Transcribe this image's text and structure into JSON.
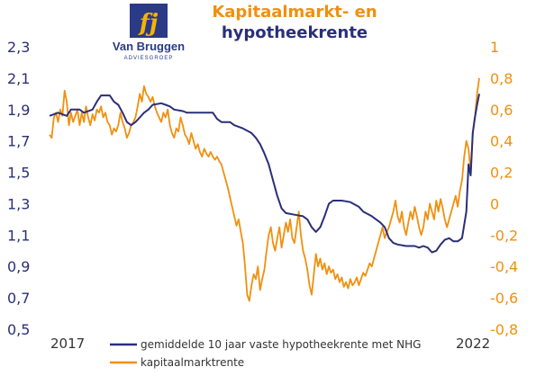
{
  "logo": {
    "company": "Van Bruggen",
    "tagline": "ADVIESGROEP",
    "mark": "fj"
  },
  "colors": {
    "navy": "#2a2f78",
    "orange": "#f0900f",
    "logo_bg": "#2b3a86",
    "logo_mark": "#f4b400"
  },
  "chart_data": {
    "type": "line",
    "title": "Kapitaalmarkt- en",
    "subtitle": "hypotheekrente",
    "x_start_label": "2017",
    "x_end_label": "2022",
    "grid": false,
    "legend_position": "bottom",
    "y_left": {
      "ticks": [
        "2,3",
        "2,1",
        "1,9",
        "1,7",
        "1,5",
        "1,3",
        "1,1",
        "0,9",
        "0,7",
        "0,5"
      ],
      "range": [
        0.5,
        2.3
      ]
    },
    "y_right": {
      "ticks": [
        "1",
        "0,8",
        "0,6",
        "0,4",
        "0,2",
        "0",
        "-0,2",
        "-0,4",
        "-0,6",
        "-0,8"
      ],
      "range": [
        -0.8,
        1.0
      ]
    },
    "x_range": [
      0,
      100
    ],
    "series": [
      {
        "name": "gemiddelde 10 jaar vaste hypotheekrente met NHG",
        "axis": "left",
        "color": "#2a2f78",
        "points": [
          [
            0,
            1.86
          ],
          [
            2,
            1.88
          ],
          [
            4,
            1.86
          ],
          [
            5,
            1.9
          ],
          [
            7,
            1.9
          ],
          [
            8,
            1.88
          ],
          [
            10,
            1.9
          ],
          [
            11,
            1.95
          ],
          [
            12,
            1.99
          ],
          [
            14,
            1.99
          ],
          [
            15,
            1.95
          ],
          [
            16,
            1.93
          ],
          [
            17,
            1.88
          ],
          [
            18,
            1.82
          ],
          [
            19,
            1.8
          ],
          [
            20,
            1.82
          ],
          [
            21,
            1.85
          ],
          [
            22,
            1.88
          ],
          [
            23,
            1.9
          ],
          [
            24,
            1.93
          ],
          [
            26,
            1.94
          ],
          [
            27,
            1.93
          ],
          [
            28,
            1.92
          ],
          [
            29,
            1.9
          ],
          [
            31,
            1.89
          ],
          [
            32,
            1.88
          ],
          [
            34,
            1.88
          ],
          [
            36,
            1.88
          ],
          [
            38,
            1.88
          ],
          [
            39,
            1.84
          ],
          [
            40,
            1.82
          ],
          [
            42,
            1.82
          ],
          [
            43,
            1.8
          ],
          [
            45,
            1.78
          ],
          [
            47,
            1.75
          ],
          [
            48,
            1.72
          ],
          [
            49,
            1.68
          ],
          [
            50,
            1.62
          ],
          [
            51,
            1.55
          ],
          [
            52,
            1.45
          ],
          [
            53,
            1.35
          ],
          [
            54,
            1.27
          ],
          [
            55,
            1.24
          ],
          [
            57,
            1.23
          ],
          [
            59,
            1.22
          ],
          [
            60,
            1.2
          ],
          [
            61,
            1.15
          ],
          [
            62,
            1.12
          ],
          [
            63,
            1.15
          ],
          [
            64,
            1.22
          ],
          [
            65,
            1.3
          ],
          [
            66,
            1.32
          ],
          [
            68,
            1.32
          ],
          [
            70,
            1.31
          ],
          [
            72,
            1.28
          ],
          [
            73,
            1.25
          ],
          [
            75,
            1.22
          ],
          [
            76,
            1.2
          ],
          [
            77,
            1.18
          ],
          [
            78,
            1.15
          ],
          [
            79,
            1.08
          ],
          [
            80,
            1.05
          ],
          [
            81,
            1.04
          ],
          [
            83,
            1.03
          ],
          [
            85,
            1.03
          ],
          [
            86,
            1.02
          ],
          [
            87,
            1.03
          ],
          [
            88,
            1.02
          ],
          [
            89,
            0.99
          ],
          [
            90,
            1.0
          ],
          [
            91,
            1.04
          ],
          [
            92,
            1.07
          ],
          [
            93,
            1.08
          ],
          [
            94,
            1.06
          ],
          [
            95,
            1.06
          ],
          [
            96,
            1.08
          ],
          [
            97,
            1.25
          ],
          [
            97.5,
            1.55
          ],
          [
            98,
            1.48
          ],
          [
            98.5,
            1.75
          ],
          [
            99,
            1.85
          ],
          [
            99.5,
            1.93
          ],
          [
            100,
            2.0
          ]
        ]
      },
      {
        "name": "kapitaalmarktrente",
        "axis": "right",
        "color": "#f0900f",
        "points": [
          [
            0,
            0.44
          ],
          [
            0.5,
            0.42
          ],
          [
            1,
            0.55
          ],
          [
            1.5,
            0.58
          ],
          [
            2,
            0.52
          ],
          [
            2.5,
            0.6
          ],
          [
            3,
            0.56
          ],
          [
            3.5,
            0.72
          ],
          [
            4,
            0.65
          ],
          [
            4.5,
            0.5
          ],
          [
            5,
            0.58
          ],
          [
            5.5,
            0.52
          ],
          [
            6,
            0.56
          ],
          [
            6.5,
            0.6
          ],
          [
            7,
            0.5
          ],
          [
            7.5,
            0.58
          ],
          [
            8,
            0.52
          ],
          [
            8.5,
            0.62
          ],
          [
            9,
            0.55
          ],
          [
            9.5,
            0.5
          ],
          [
            10,
            0.57
          ],
          [
            10.5,
            0.53
          ],
          [
            11,
            0.6
          ],
          [
            11.5,
            0.58
          ],
          [
            12,
            0.62
          ],
          [
            12.5,
            0.55
          ],
          [
            13,
            0.58
          ],
          [
            13.5,
            0.52
          ],
          [
            14,
            0.5
          ],
          [
            14.5,
            0.44
          ],
          [
            15,
            0.48
          ],
          [
            15.5,
            0.46
          ],
          [
            16,
            0.5
          ],
          [
            16.5,
            0.58
          ],
          [
            17,
            0.52
          ],
          [
            17.5,
            0.48
          ],
          [
            18,
            0.42
          ],
          [
            18.5,
            0.45
          ],
          [
            19,
            0.5
          ],
          [
            19.5,
            0.52
          ],
          [
            20,
            0.55
          ],
          [
            20.5,
            0.62
          ],
          [
            21,
            0.7
          ],
          [
            21.5,
            0.65
          ],
          [
            22,
            0.75
          ],
          [
            22.5,
            0.7
          ],
          [
            23,
            0.68
          ],
          [
            23.5,
            0.65
          ],
          [
            24,
            0.68
          ],
          [
            24.5,
            0.62
          ],
          [
            25,
            0.58
          ],
          [
            25.5,
            0.55
          ],
          [
            26,
            0.52
          ],
          [
            26.5,
            0.58
          ],
          [
            27,
            0.55
          ],
          [
            27.5,
            0.6
          ],
          [
            28,
            0.5
          ],
          [
            28.5,
            0.45
          ],
          [
            29,
            0.42
          ],
          [
            29.5,
            0.48
          ],
          [
            30,
            0.46
          ],
          [
            30.5,
            0.55
          ],
          [
            31,
            0.5
          ],
          [
            31.5,
            0.44
          ],
          [
            32,
            0.42
          ],
          [
            32.5,
            0.38
          ],
          [
            33,
            0.45
          ],
          [
            33.5,
            0.4
          ],
          [
            34,
            0.35
          ],
          [
            34.5,
            0.38
          ],
          [
            35,
            0.33
          ],
          [
            35.5,
            0.3
          ],
          [
            36,
            0.35
          ],
          [
            36.5,
            0.32
          ],
          [
            37,
            0.3
          ],
          [
            37.5,
            0.33
          ],
          [
            38,
            0.3
          ],
          [
            38.5,
            0.28
          ],
          [
            39,
            0.3
          ],
          [
            39.5,
            0.27
          ],
          [
            40,
            0.25
          ],
          [
            40.5,
            0.2
          ],
          [
            41,
            0.15
          ],
          [
            41.5,
            0.1
          ],
          [
            42,
            0.04
          ],
          [
            42.5,
            -0.02
          ],
          [
            43,
            -0.08
          ],
          [
            43.5,
            -0.14
          ],
          [
            44,
            -0.1
          ],
          [
            44.5,
            -0.18
          ],
          [
            45,
            -0.25
          ],
          [
            45.5,
            -0.4
          ],
          [
            46,
            -0.58
          ],
          [
            46.5,
            -0.62
          ],
          [
            47,
            -0.52
          ],
          [
            47.5,
            -0.45
          ],
          [
            48,
            -0.48
          ],
          [
            48.5,
            -0.4
          ],
          [
            49,
            -0.55
          ],
          [
            49.5,
            -0.48
          ],
          [
            50,
            -0.42
          ],
          [
            50.5,
            -0.3
          ],
          [
            51,
            -0.2
          ],
          [
            51.5,
            -0.15
          ],
          [
            52,
            -0.25
          ],
          [
            52.5,
            -0.3
          ],
          [
            53,
            -0.22
          ],
          [
            53.5,
            -0.15
          ],
          [
            54,
            -0.28
          ],
          [
            54.5,
            -0.2
          ],
          [
            55,
            -0.12
          ],
          [
            55.5,
            -0.18
          ],
          [
            56,
            -0.1
          ],
          [
            56.5,
            -0.22
          ],
          [
            57,
            -0.25
          ],
          [
            57.5,
            -0.15
          ],
          [
            58,
            -0.05
          ],
          [
            58.5,
            -0.2
          ],
          [
            59,
            -0.3
          ],
          [
            59.5,
            -0.35
          ],
          [
            60,
            -0.42
          ],
          [
            60.5,
            -0.52
          ],
          [
            61,
            -0.58
          ],
          [
            61.5,
            -0.45
          ],
          [
            62,
            -0.32
          ],
          [
            62.5,
            -0.4
          ],
          [
            63,
            -0.35
          ],
          [
            63.5,
            -0.42
          ],
          [
            64,
            -0.38
          ],
          [
            64.5,
            -0.45
          ],
          [
            65,
            -0.4
          ],
          [
            65.5,
            -0.44
          ],
          [
            66,
            -0.42
          ],
          [
            66.5,
            -0.48
          ],
          [
            67,
            -0.45
          ],
          [
            67.5,
            -0.5
          ],
          [
            68,
            -0.47
          ],
          [
            68.5,
            -0.53
          ],
          [
            69,
            -0.5
          ],
          [
            69.5,
            -0.54
          ],
          [
            70,
            -0.48
          ],
          [
            70.5,
            -0.52
          ],
          [
            71,
            -0.5
          ],
          [
            71.5,
            -0.47
          ],
          [
            72,
            -0.52
          ],
          [
            72.5,
            -0.48
          ],
          [
            73,
            -0.44
          ],
          [
            73.5,
            -0.46
          ],
          [
            74,
            -0.42
          ],
          [
            74.5,
            -0.38
          ],
          [
            75,
            -0.4
          ],
          [
            75.5,
            -0.35
          ],
          [
            76,
            -0.3
          ],
          [
            76.5,
            -0.25
          ],
          [
            77,
            -0.2
          ],
          [
            77.5,
            -0.15
          ],
          [
            78,
            -0.22
          ],
          [
            78.5,
            -0.18
          ],
          [
            79,
            -0.15
          ],
          [
            79.5,
            -0.1
          ],
          [
            80,
            -0.05
          ],
          [
            80.5,
            0.02
          ],
          [
            81,
            -0.08
          ],
          [
            81.5,
            -0.12
          ],
          [
            82,
            -0.05
          ],
          [
            82.5,
            -0.15
          ],
          [
            83,
            -0.2
          ],
          [
            83.5,
            -0.12
          ],
          [
            84,
            -0.05
          ],
          [
            84.5,
            -0.1
          ],
          [
            85,
            -0.02
          ],
          [
            85.5,
            -0.08
          ],
          [
            86,
            -0.15
          ],
          [
            86.5,
            -0.2
          ],
          [
            87,
            -0.15
          ],
          [
            87.5,
            -0.05
          ],
          [
            88,
            -0.1
          ],
          [
            88.5,
            0.0
          ],
          [
            89,
            -0.05
          ],
          [
            89.5,
            -0.1
          ],
          [
            90,
            0.02
          ],
          [
            90.5,
            -0.05
          ],
          [
            91,
            0.03
          ],
          [
            91.5,
            -0.03
          ],
          [
            92,
            -0.1
          ],
          [
            92.5,
            -0.15
          ],
          [
            93,
            -0.1
          ],
          [
            93.5,
            -0.05
          ],
          [
            94,
            0.0
          ],
          [
            94.5,
            0.05
          ],
          [
            95,
            -0.02
          ],
          [
            95.5,
            0.08
          ],
          [
            96,
            0.15
          ],
          [
            96.5,
            0.3
          ],
          [
            97,
            0.4
          ],
          [
            97.5,
            0.35
          ],
          [
            98,
            0.2
          ],
          [
            98.5,
            0.45
          ],
          [
            99,
            0.55
          ],
          [
            99.5,
            0.7
          ],
          [
            100,
            0.8
          ]
        ]
      }
    ]
  }
}
